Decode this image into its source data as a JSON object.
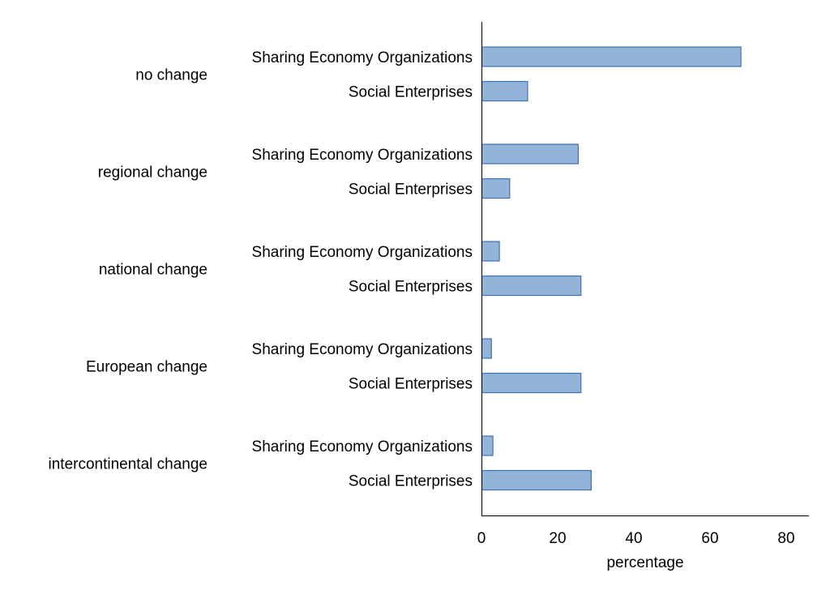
{
  "chart_data": {
    "type": "bar",
    "orientation": "horizontal",
    "xlabel": "percentage",
    "xlim": [
      0,
      86
    ],
    "xticks": [
      0,
      20,
      40,
      60,
      80
    ],
    "grid": false,
    "bar_color": "#92b4d8",
    "bar_edge_color": "#3d72b4",
    "groups": [
      {
        "label": "no change",
        "bars": [
          {
            "label": "Sharing Economy Organizations",
            "value": 68
          },
          {
            "label": "Social Enterprises",
            "value": 12
          }
        ]
      },
      {
        "label": "regional change",
        "bars": [
          {
            "label": "Sharing Economy Organizations",
            "value": 25.3
          },
          {
            "label": "Social Enterprises",
            "value": 7.3
          }
        ]
      },
      {
        "label": "national change",
        "bars": [
          {
            "label": "Sharing Economy Organizations",
            "value": 4.6
          },
          {
            "label": "Social Enterprises",
            "value": 26
          }
        ]
      },
      {
        "label": "European change",
        "bars": [
          {
            "label": "Sharing Economy Organizations",
            "value": 2.5
          },
          {
            "label": "Social Enterprises",
            "value": 26
          }
        ]
      },
      {
        "label": "intercontinental change",
        "bars": [
          {
            "label": "Sharing Economy Organizations",
            "value": 2.9
          },
          {
            "label": "Social Enterprises",
            "value": 28.7
          }
        ]
      }
    ]
  }
}
